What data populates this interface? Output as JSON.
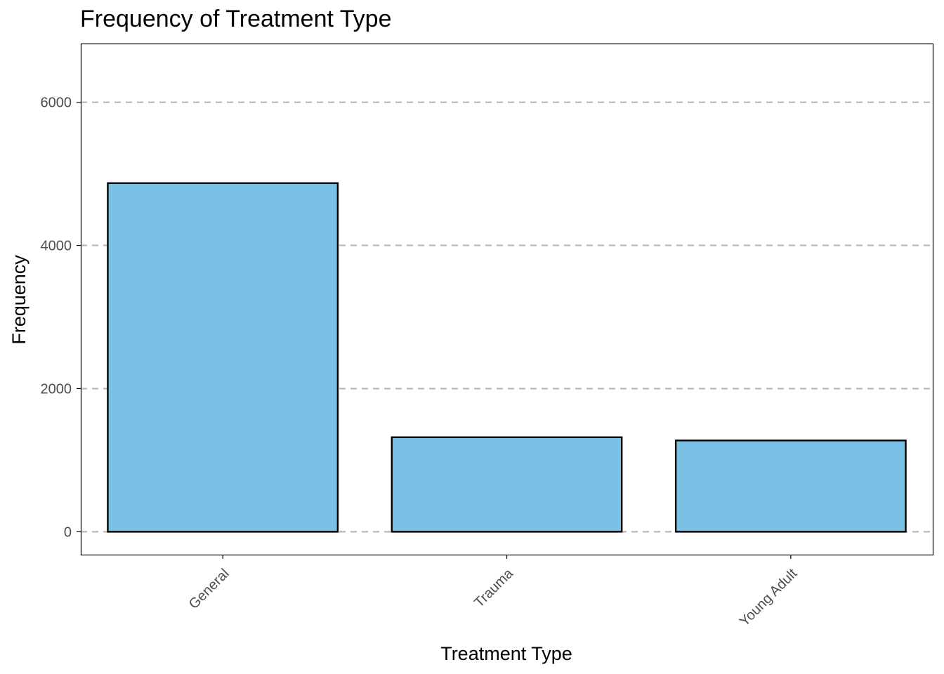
{
  "chart_data": {
    "type": "bar",
    "title": "Frequency of Treatment Type",
    "xlabel": "Treatment Type",
    "ylabel": "Frequency",
    "categories": [
      "General",
      "Trauma",
      "Young Adult"
    ],
    "values": [
      4870,
      1320,
      1275
    ],
    "ylim": [
      -320,
      6820
    ],
    "yticks": [
      0,
      2000,
      4000,
      6000
    ],
    "ytick_labels": [
      "0",
      "2000",
      "4000",
      "6000"
    ],
    "grid": "horizontal dashed major gridlines",
    "legend": "none",
    "colors": {
      "bar_fill": "#7AC2E5",
      "bar_stroke": "#000000",
      "grid": "#b3b3b3",
      "panel_border": "#000000"
    }
  }
}
